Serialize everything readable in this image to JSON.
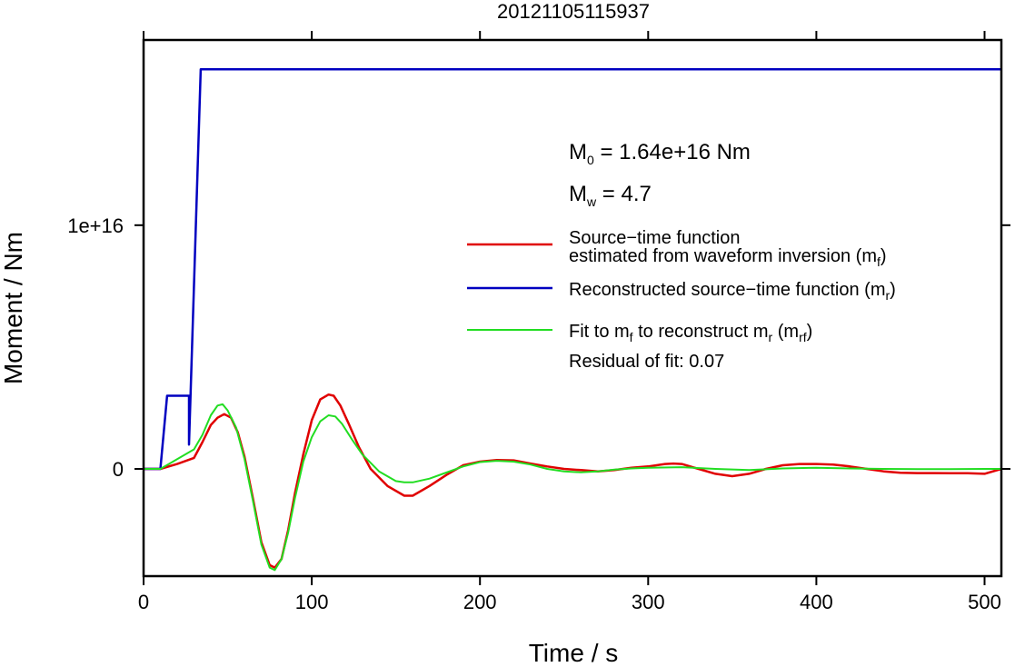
{
  "chart_data": {
    "type": "line",
    "title": "20121105115937",
    "xlabel": "Time / s",
    "ylabel": "Moment / Nm",
    "xlim": [
      0,
      510
    ],
    "ylim": [
      -4400000000000000.0,
      1.76e+16
    ],
    "x_ticks": [
      0,
      100,
      200,
      300,
      400,
      500
    ],
    "x_tick_labels": [
      "0",
      "100",
      "200",
      "300",
      "400",
      "500"
    ],
    "y_ticks": [
      0,
      1e+16
    ],
    "y_tick_labels": [
      "0",
      "1e+16"
    ],
    "grid": false,
    "legend_position": "right",
    "annotations": {
      "m0": {
        "prefix": "M",
        "sub": "0",
        "rest": " = 1.64e+16 Nm"
      },
      "mw": {
        "prefix": "M",
        "sub": "w",
        "rest": " = 4.7"
      },
      "residual": "Residual of fit: 0.07"
    },
    "legend": [
      {
        "key": "mf",
        "color": "#e00000",
        "line1": "Source−time function",
        "line2_pre": "estimated from waveform inversion (m",
        "line2_sub": "f",
        "line2_post": ")"
      },
      {
        "key": "mr",
        "color": "#0000c0",
        "pre": "Reconstructed source−time function (m",
        "sub": "r",
        "post": ")"
      },
      {
        "key": "mrf",
        "color": "#22dd22",
        "pre": "Fit to m",
        "sub1": "f",
        "mid": " to reconstruct m",
        "sub2": "r",
        "mid2": " (m",
        "sub3": "rf",
        "post": ")"
      }
    ],
    "series": [
      {
        "key": "mf",
        "color": "#e00000",
        "x": [
          0,
          10,
          20,
          30,
          35,
          40,
          44,
          48,
          52,
          56,
          60,
          65,
          70,
          75,
          78,
          82,
          86,
          90,
          95,
          100,
          105,
          110,
          113,
          117,
          122,
          128,
          135,
          145,
          155,
          160,
          170,
          180,
          190,
          200,
          210,
          220,
          230,
          240,
          250,
          260,
          270,
          280,
          290,
          300,
          310,
          315,
          320,
          330,
          340,
          350,
          360,
          370,
          380,
          390,
          400,
          410,
          420,
          430,
          440,
          450,
          460,
          470,
          480,
          490,
          500,
          510
        ],
        "y": [
          0,
          0,
          200000000000000.0,
          450000000000000.0,
          1100000000000000.0,
          1800000000000000.0,
          2100000000000000.0,
          2250000000000000.0,
          2100000000000000.0,
          1500000000000000.0,
          500000000000000.0,
          -1200000000000000.0,
          -3000000000000000.0,
          -3950000000000000.0,
          -4050000000000000.0,
          -3700000000000000.0,
          -2500000000000000.0,
          -1000000000000000.0,
          600000000000000.0,
          2000000000000000.0,
          2850000000000000.0,
          3050000000000000.0,
          3000000000000000.0,
          2600000000000000.0,
          1850000000000000.0,
          900000000000000.0,
          0,
          -700000000000000.0,
          -1100000000000000.0,
          -1100000000000000.0,
          -700000000000000.0,
          -250000000000000.0,
          150000000000000.0,
          300000000000000.0,
          360000000000000.0,
          350000000000000.0,
          220000000000000.0,
          100000000000000.0,
          0,
          -50000000000000.0,
          -100000000000000.0,
          -50000000000000.0,
          50000000000000.0,
          100000000000000.0,
          200000000000000.0,
          220000000000000.0,
          200000000000000.0,
          0,
          -200000000000000.0,
          -300000000000000.0,
          -200000000000000.0,
          0,
          150000000000000.0,
          200000000000000.0,
          200000000000000.0,
          180000000000000.0,
          100000000000000.0,
          0,
          -100000000000000.0,
          -160000000000000.0,
          -170000000000000.0,
          -170000000000000.0,
          -180000000000000.0,
          -180000000000000.0,
          -200000000000000.0,
          0
        ]
      },
      {
        "key": "mr",
        "color": "#0000c0",
        "x": [
          0,
          10,
          14,
          27,
          27,
          34,
          34,
          510
        ],
        "y": [
          0,
          0,
          3000000000000000.0,
          3000000000000000.0,
          1000000000000000.0,
          1.64e+16,
          1.64e+16,
          1.64e+16
        ]
      },
      {
        "key": "mrf",
        "color": "#22dd22",
        "x": [
          0,
          10,
          20,
          30,
          35,
          40,
          44,
          47,
          50,
          55,
          60,
          65,
          70,
          75,
          78,
          82,
          86,
          90,
          95,
          100,
          105,
          110,
          114,
          118,
          124,
          130,
          140,
          150,
          155,
          160,
          170,
          180,
          190,
          200,
          210,
          220,
          230,
          240,
          250,
          260,
          270,
          280,
          290,
          300,
          320,
          340,
          360,
          380,
          400,
          420,
          440,
          460,
          480,
          500,
          510
        ],
        "y": [
          0,
          0,
          400000000000000.0,
          800000000000000.0,
          1400000000000000.0,
          2200000000000000.0,
          2600000000000000.0,
          2650000000000000.0,
          2400000000000000.0,
          1700000000000000.0,
          400000000000000.0,
          -1300000000000000.0,
          -3100000000000000.0,
          -4050000000000000.0,
          -4150000000000000.0,
          -3700000000000000.0,
          -2600000000000000.0,
          -1200000000000000.0,
          300000000000000.0,
          1300000000000000.0,
          1950000000000000.0,
          2200000000000000.0,
          2150000000000000.0,
          1850000000000000.0,
          1200000000000000.0,
          600000000000000.0,
          -100000000000000.0,
          -500000000000000.0,
          -550000000000000.0,
          -550000000000000.0,
          -400000000000000.0,
          -150000000000000.0,
          100000000000000.0,
          280000000000000.0,
          330000000000000.0,
          300000000000000.0,
          180000000000000.0,
          0,
          -100000000000000.0,
          -140000000000000.0,
          -100000000000000.0,
          -30000000000000.0,
          20000000000000.0,
          50000000000000.0,
          70000000000000.0,
          0,
          -50000000000000.0,
          20000000000000.0,
          50000000000000.0,
          20000000000000.0,
          0,
          -10000000000000.0,
          -10000000000000.0,
          0,
          0
        ]
      }
    ]
  }
}
